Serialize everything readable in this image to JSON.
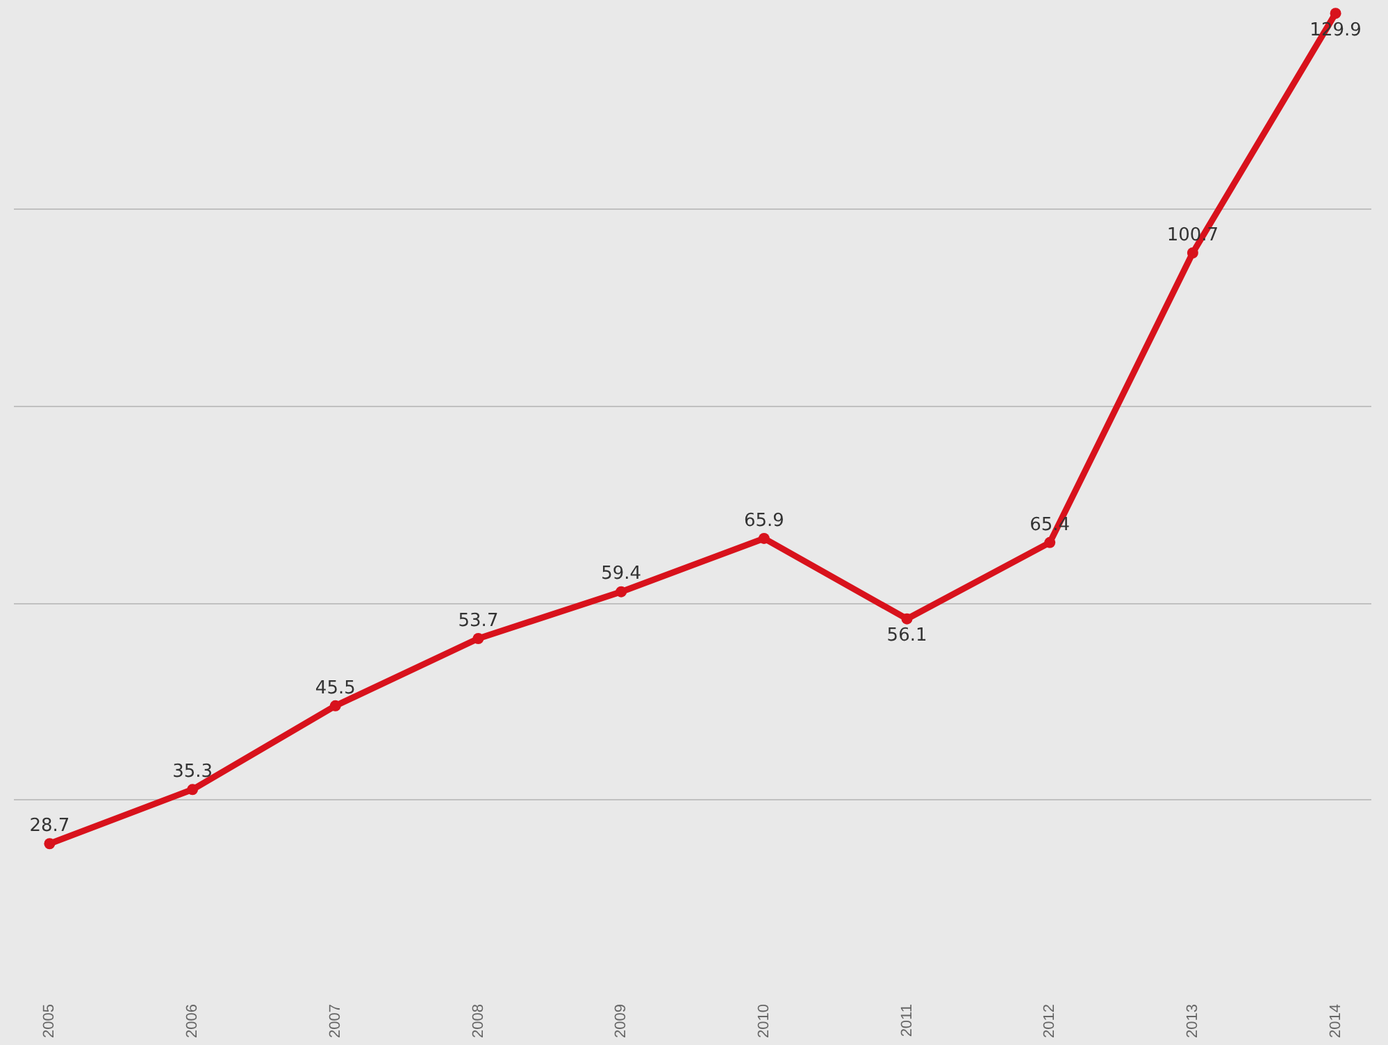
{
  "chart_data": {
    "type": "line",
    "categories": [
      "2005",
      "2006",
      "2007",
      "2008",
      "2009",
      "2010",
      "2011",
      "2012",
      "2013",
      "2014"
    ],
    "series": [
      {
        "color": "#d8121c",
        "values": [
          28.7,
          35.3,
          45.5,
          53.7,
          59.4,
          65.9,
          56.1,
          65.4,
          100.7,
          129.9
        ]
      }
    ],
    "yticks": [
      {
        "value": 34,
        "label": null
      },
      {
        "value": 58,
        "label": null
      },
      {
        "value": 82,
        "label": null
      },
      {
        "value": 106,
        "label": null
      }
    ],
    "tick_labels": "x",
    "grid": "y",
    "data_labels": true,
    "marker": "circle",
    "line_style": "solid"
  }
}
